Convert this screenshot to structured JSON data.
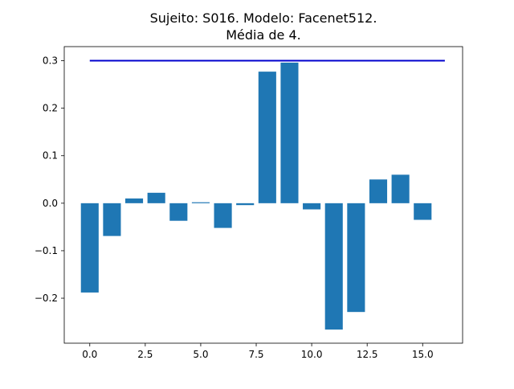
{
  "chart_data": {
    "type": "bar",
    "title_line1": "Sujeito: S016. Modelo: Facenet512.",
    "title_line2": "Média de 4.",
    "x": [
      0,
      1,
      2,
      3,
      4,
      5,
      6,
      7,
      8,
      9,
      10,
      11,
      12,
      13,
      14,
      15
    ],
    "values": [
      -0.188,
      -0.069,
      0.01,
      0.022,
      -0.037,
      0.002,
      -0.052,
      -0.004,
      0.277,
      0.296,
      -0.013,
      -0.266,
      -0.229,
      0.05,
      0.06,
      -0.035
    ],
    "bar_color": "#1f77b4",
    "threshold": {
      "value": 0.3,
      "x_start": 0,
      "x_end": 16,
      "color": "#0000cd"
    },
    "xlim": [
      -1.15,
      16.8
    ],
    "ylim": [
      -0.2947,
      0.3297
    ],
    "xticks": [
      0.0,
      2.5,
      5.0,
      7.5,
      10.0,
      12.5,
      15.0
    ],
    "xtick_labels": [
      "0.0",
      "2.5",
      "5.0",
      "7.5",
      "10.0",
      "12.5",
      "15.0"
    ],
    "yticks": [
      -0.2,
      -0.1,
      0.0,
      0.1,
      0.2,
      0.3
    ],
    "ytick_labels": [
      "−0.2",
      "−0.1",
      "0.0",
      "0.1",
      "0.2",
      "0.3"
    ],
    "grid": false,
    "legend": "none"
  }
}
